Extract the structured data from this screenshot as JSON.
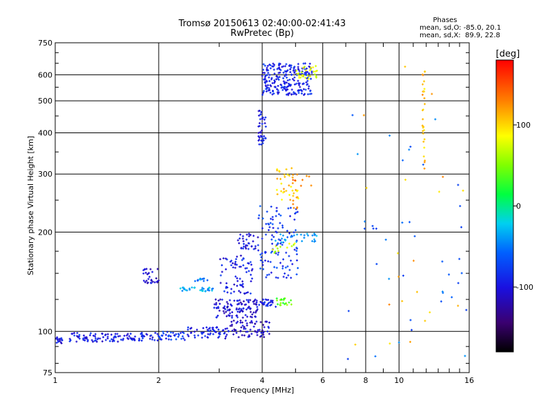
{
  "chart_data": {
    "type": "scatter",
    "title": "Tromsø 20150613 02:40:00-02:41:43",
    "subtitle": "RwPretec (Bp)",
    "xlabel": "Frequency [MHz]",
    "ylabel": "Stationary phase Virtual Height [km]",
    "xscale": "log",
    "yscale": "log",
    "xlim": [
      1,
      16
    ],
    "ylim": [
      75,
      750
    ],
    "xticks": [
      1,
      2,
      4,
      6,
      8,
      10,
      16
    ],
    "xtick_labels": [
      "1",
      "2",
      "4",
      "6",
      "8",
      "10",
      "16"
    ],
    "yticks": [
      75,
      100,
      200,
      300,
      400,
      500,
      600,
      750
    ],
    "ytick_labels": [
      "75",
      "100",
      "200",
      "300",
      "400",
      "500",
      "600",
      "750"
    ],
    "grid": true,
    "stats": {
      "heading": "Phases",
      "line_o": "mean, sd,O: -85.0, 20.1",
      "line_x": "mean, sd,X:  89.9, 22.8"
    },
    "colorbar": {
      "label": "[deg]",
      "range": [
        -180,
        180
      ],
      "ticks": [
        100,
        0,
        -100
      ],
      "tick_labels": [
        "100",
        "0",
        "-100"
      ]
    },
    "clusters": [
      {
        "f": [
          1.0,
          1.05
        ],
        "h": [
          92,
          96
        ],
        "phase": -100,
        "n": 20
      },
      {
        "f": [
          1.1,
          2.0
        ],
        "h": [
          93,
          99
        ],
        "phase": -95,
        "n": 110
      },
      {
        "f": [
          2.0,
          2.4
        ],
        "h": [
          94,
          100
        ],
        "phase": -80,
        "n": 35
      },
      {
        "f": [
          2.4,
          3.2
        ],
        "h": [
          95,
          103
        ],
        "phase": -95,
        "n": 60
      },
      {
        "f": [
          3.2,
          4.2
        ],
        "h": [
          96,
          108
        ],
        "phase": -110,
        "n": 70
      },
      {
        "f": [
          1.8,
          2.0
        ],
        "h": [
          140,
          155
        ],
        "phase": -110,
        "n": 30
      },
      {
        "f": [
          2.3,
          2.9
        ],
        "h": [
          132,
          136
        ],
        "phase": -35,
        "n": 30
      },
      {
        "f": [
          2.55,
          2.8
        ],
        "h": [
          142,
          146
        ],
        "phase": -45,
        "n": 12
      },
      {
        "f": [
          2.9,
          3.9
        ],
        "h": [
          110,
          125
        ],
        "phase": -105,
        "n": 110
      },
      {
        "f": [
          3.9,
          4.4
        ],
        "h": [
          118,
          125
        ],
        "phase": -90,
        "n": 25
      },
      {
        "f": [
          4.4,
          4.9
        ],
        "h": [
          120,
          126
        ],
        "phase": 40,
        "n": 20
      },
      {
        "f": [
          3.0,
          3.8
        ],
        "h": [
          130,
          170
        ],
        "phase": -95,
        "n": 70
      },
      {
        "f": [
          3.4,
          3.9
        ],
        "h": [
          175,
          198
        ],
        "phase": -100,
        "n": 35
      },
      {
        "f": [
          3.9,
          5.1
        ],
        "h": [
          145,
          240
        ],
        "phase": -80,
        "n": 110
      },
      {
        "f": [
          4.3,
          5.8
        ],
        "h": [
          185,
          198
        ],
        "phase": -40,
        "n": 30
      },
      {
        "f": [
          4.0,
          5.0
        ],
        "h": [
          170,
          185
        ],
        "phase": 70,
        "n": 12
      },
      {
        "f": [
          4.4,
          5.1
        ],
        "h": [
          250,
          315
        ],
        "phase": 105,
        "n": 40
      },
      {
        "f": [
          4.9,
          5.6
        ],
        "h": [
          230,
          300
        ],
        "phase": 140,
        "n": 12
      },
      {
        "f": [
          3.9,
          4.1
        ],
        "h": [
          368,
          470
        ],
        "phase": -100,
        "n": 40
      },
      {
        "f": [
          4.0,
          5.6
        ],
        "h": [
          520,
          650
        ],
        "phase": -90,
        "n": 240
      },
      {
        "f": [
          5.0,
          5.9
        ],
        "h": [
          580,
          640
        ],
        "phase": 80,
        "n": 30
      },
      {
        "f": [
          11.7,
          11.9
        ],
        "h": [
          300,
          620
        ],
        "phase": 110,
        "n": 30
      },
      {
        "f": [
          7.0,
          16.0
        ],
        "h": [
          80,
          470
        ],
        "phase": -60,
        "n": 40
      },
      {
        "f": [
          7.0,
          16.0
        ],
        "h": [
          80,
          650
        ],
        "phase": 110,
        "n": 20
      }
    ]
  }
}
